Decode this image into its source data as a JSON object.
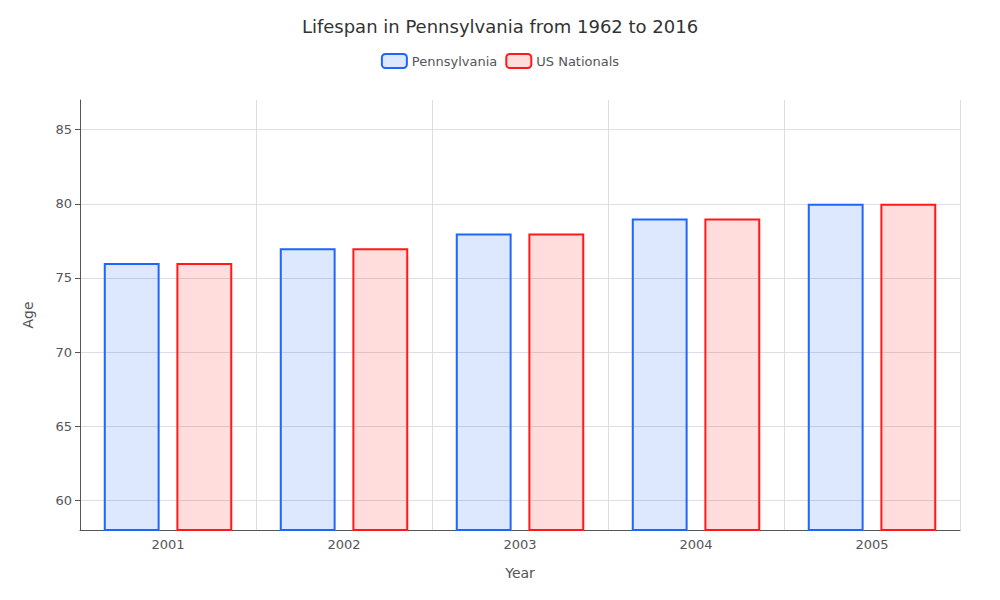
{
  "chart_data": {
    "type": "bar",
    "title": "Lifespan in Pennsylvania from 1962 to 2016",
    "x_label": "Year",
    "y_label": "Age",
    "categories": [
      "2001",
      "2002",
      "2003",
      "2004",
      "2005"
    ],
    "series": [
      {
        "name": "Pennsylvania",
        "color": "#1a66ff",
        "values": [
          76,
          77,
          78,
          79,
          80
        ]
      },
      {
        "name": "US Nationals",
        "color": "#ff1a1a",
        "values": [
          76,
          77,
          78,
          79,
          80
        ]
      }
    ],
    "ylim": [
      58,
      87
    ],
    "yticks": [
      60,
      65,
      70,
      75,
      80,
      85
    ],
    "grid": true,
    "legend": "top"
  }
}
